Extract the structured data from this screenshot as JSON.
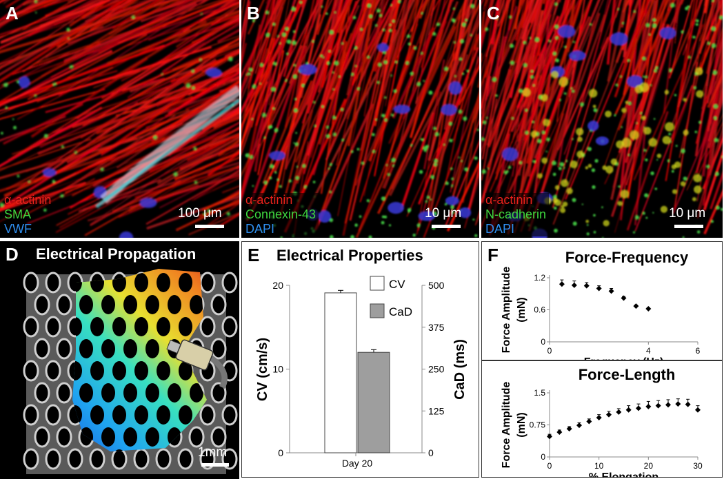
{
  "figure": {
    "A": {
      "label": "A",
      "stains": [
        "α-actinin",
        "SMA",
        "VWF"
      ],
      "stain_colors": [
        "#e8221b",
        "#3fd73f",
        "#2f8ff0"
      ],
      "scale": "100 μm"
    },
    "B": {
      "label": "B",
      "stains": [
        "α-actinin",
        "Connexin-43",
        "DAPI"
      ],
      "stain_colors": [
        "#e8221b",
        "#3fd73f",
        "#2f8ff0"
      ],
      "scale": "10 μm"
    },
    "C": {
      "label": "C",
      "stains": [
        "α-actinin",
        "N-cadherin",
        "DAPI"
      ],
      "stain_colors": [
        "#e8221b",
        "#3fd73f",
        "#2f8ff0"
      ],
      "scale": "10 μm"
    },
    "D": {
      "label": "D",
      "title": "Electrical Propagation",
      "scale": "1mm"
    },
    "E": {
      "label": "E",
      "title": "Electrical Properties"
    },
    "F": {
      "label": "F"
    }
  },
  "chart_data": [
    {
      "type": "bar",
      "title": "Electrical Properties",
      "categories": [
        "Day 20"
      ],
      "series": [
        {
          "name": "CV",
          "values": [
            19.1
          ],
          "error": [
            0.3
          ],
          "axis": "left",
          "color": "#ffffff"
        },
        {
          "name": "CaD",
          "values": [
            300
          ],
          "error": [
            8
          ],
          "axis": "right",
          "color": "#9e9e9e"
        }
      ],
      "ylabel": "CV (cm/s)",
      "ylim": [
        0,
        20
      ],
      "yticks": [
        "0",
        "10",
        "20"
      ],
      "y2label": "CaD (ms)",
      "y2lim": [
        0,
        500
      ],
      "y2ticks": [
        "0",
        "125",
        "250",
        "375",
        "500"
      ],
      "legend_position": "top-right"
    },
    {
      "type": "scatter",
      "title": "Force-Frequency",
      "xlabel": "Frequency (Hz)",
      "ylabel": "Force Amplitude (mN)",
      "xlim": [
        0,
        6
      ],
      "ylim": [
        0,
        1.2
      ],
      "xticks": [
        "0",
        "4",
        "6"
      ],
      "yticks": [
        "0",
        "0.6",
        "1.2"
      ],
      "x": [
        0.5,
        1,
        1.5,
        2,
        2.5,
        3,
        3.5,
        4
      ],
      "y": [
        1.08,
        1.06,
        1.05,
        1.0,
        0.95,
        0.82,
        0.67,
        0.62
      ],
      "error": [
        0.08,
        0.08,
        0.06,
        0.05,
        0.05,
        0.03,
        0.02,
        0.02
      ]
    },
    {
      "type": "scatter",
      "title": "Force-Length",
      "xlabel": "% Elongation",
      "ylabel": "Force Amplitude (mN)",
      "xlim": [
        0,
        30
      ],
      "ylim": [
        0,
        1.5
      ],
      "xticks": [
        "0",
        "10",
        "20",
        "30"
      ],
      "yticks": [
        "0",
        "0.75",
        "1.5"
      ],
      "x": [
        0,
        2,
        4,
        6,
        8,
        10,
        12,
        14,
        16,
        18,
        20,
        22,
        24,
        26,
        28,
        30
      ],
      "y": [
        0.48,
        0.58,
        0.66,
        0.74,
        0.83,
        0.92,
        0.99,
        1.05,
        1.1,
        1.14,
        1.18,
        1.2,
        1.22,
        1.24,
        1.23,
        1.1
      ],
      "error": [
        0.05,
        0.05,
        0.05,
        0.06,
        0.06,
        0.07,
        0.08,
        0.08,
        0.1,
        0.1,
        0.12,
        0.12,
        0.12,
        0.12,
        0.12,
        0.1
      ]
    }
  ]
}
